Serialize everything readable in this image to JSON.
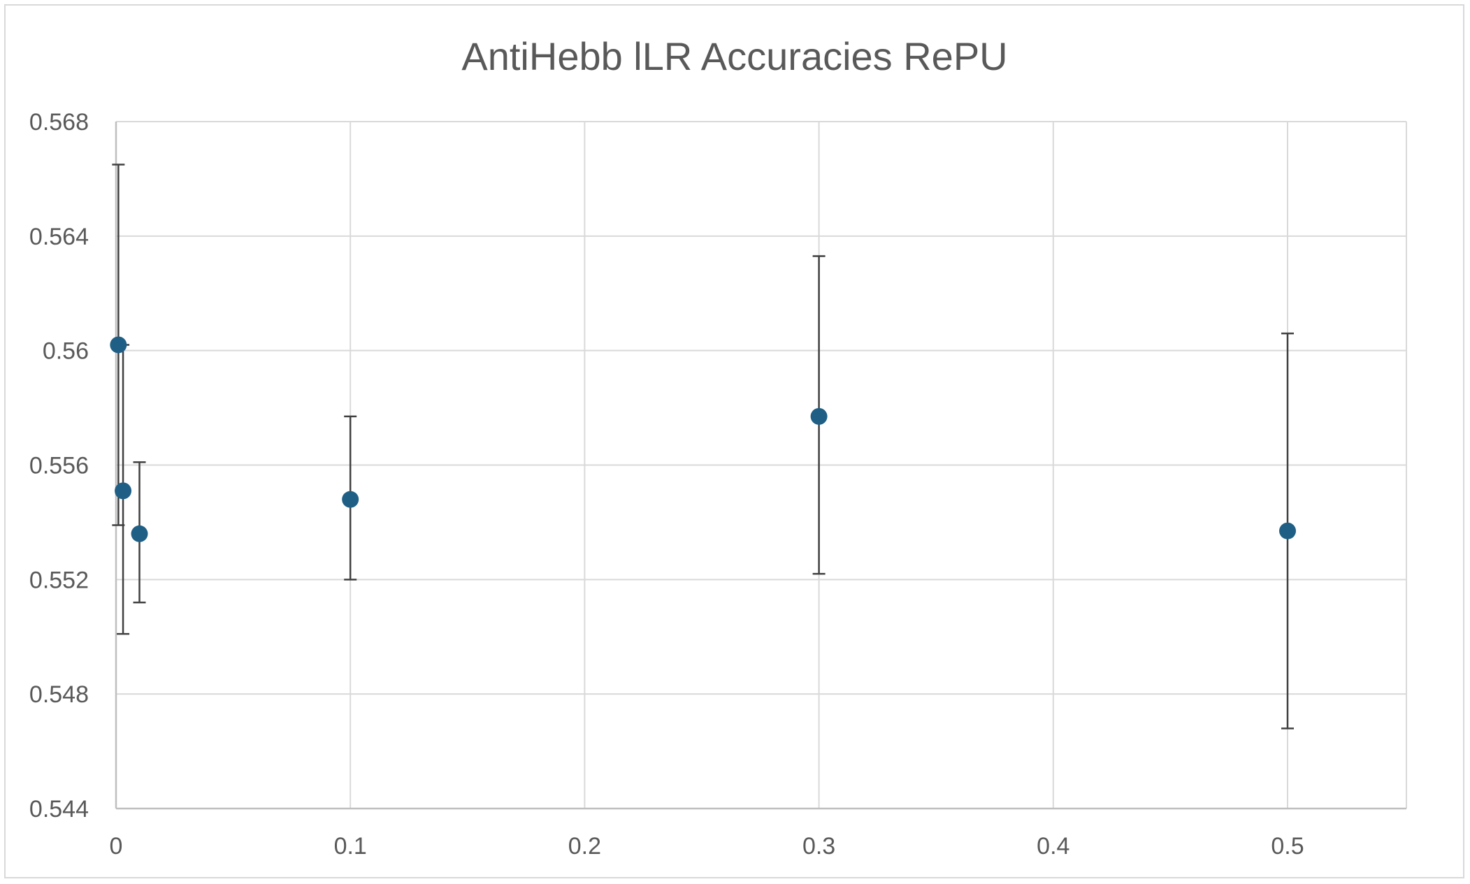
{
  "chart_data": {
    "type": "scatter",
    "title": "AntiHebb lLR Accuracies RePU",
    "xlabel": "",
    "ylabel": "",
    "xlim": [
      0,
      0.55
    ],
    "ylim": [
      0.544,
      0.568
    ],
    "x_ticks": [
      0,
      0.1,
      0.2,
      0.3,
      0.4,
      0.5
    ],
    "x_tick_labels": [
      "0",
      "0.1",
      "0.2",
      "0.3",
      "0.4",
      "0.5"
    ],
    "y_ticks": [
      0.544,
      0.548,
      0.552,
      0.556,
      0.56,
      0.564,
      0.568
    ],
    "y_tick_labels": [
      "0.544",
      "0.548",
      "0.552",
      "0.556",
      "0.56",
      "0.564",
      "0.568"
    ],
    "grid": true,
    "legend": "none",
    "series": [
      {
        "color": "#1f5f85",
        "error_color": "#404040",
        "points": [
          {
            "x": 0.001,
            "y": 0.5602,
            "err_low": 0.5539,
            "err_high": 0.5665
          },
          {
            "x": 0.003,
            "y": 0.5551,
            "err_low": 0.5501,
            "err_high": 0.5602
          },
          {
            "x": 0.01,
            "y": 0.5536,
            "err_low": 0.5512,
            "err_high": 0.5561
          },
          {
            "x": 0.1,
            "y": 0.5548,
            "err_low": 0.552,
            "err_high": 0.5577
          },
          {
            "x": 0.3,
            "y": 0.5577,
            "err_low": 0.5522,
            "err_high": 0.5633
          },
          {
            "x": 0.5,
            "y": 0.5537,
            "err_low": 0.5468,
            "err_high": 0.5606
          }
        ]
      }
    ]
  },
  "colors": {
    "grid": "#d9d9d9",
    "axis": "#bfbfbf",
    "text": "#595959",
    "frame": "#d9d9d9"
  }
}
